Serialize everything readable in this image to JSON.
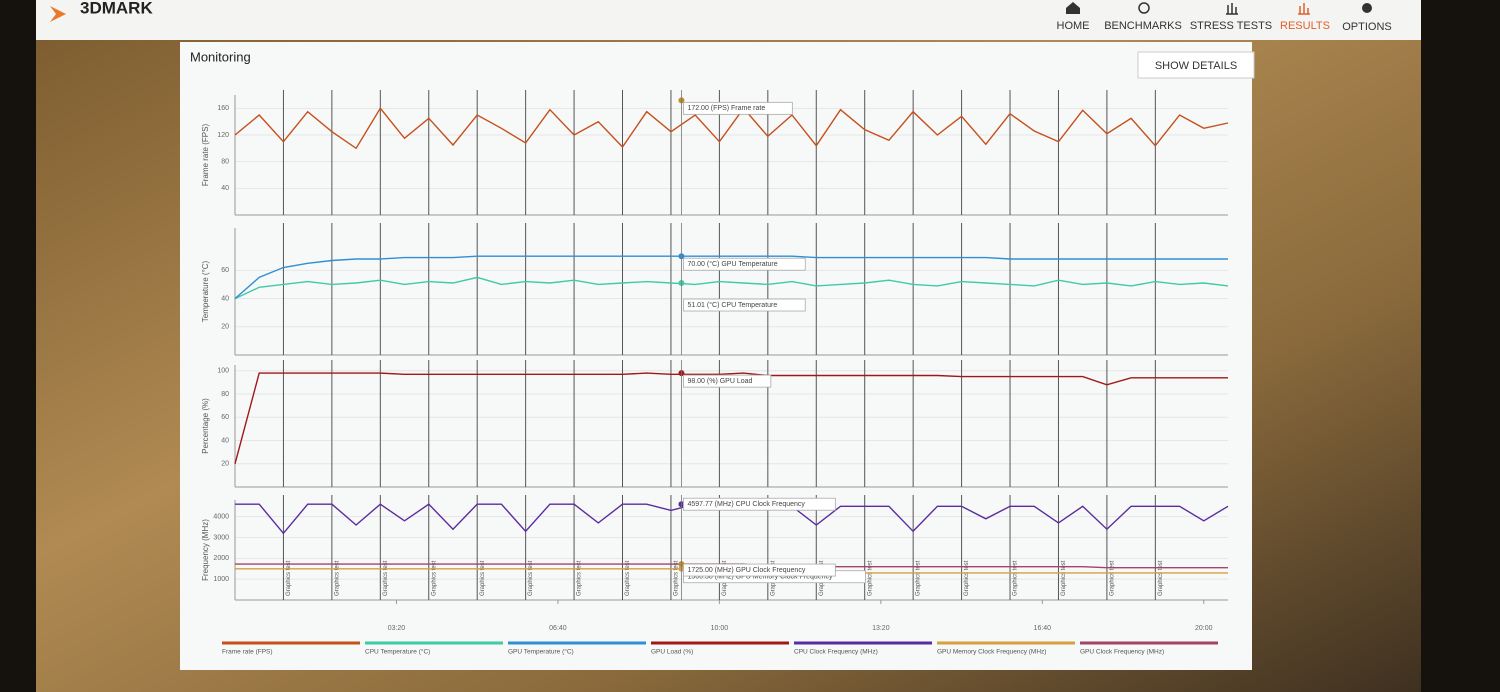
{
  "header": {
    "logo": "3DMARK",
    "nav": [
      "HOME",
      "BENCHMARKS",
      "STRESS TESTS",
      "RESULTS",
      "OPTIONS"
    ]
  },
  "panel": {
    "title": "Monitoring",
    "button": "SHOW DETAILS"
  },
  "markers": {
    "label": "Graphics test",
    "x": [
      60,
      120,
      180,
      240,
      300,
      360,
      420,
      480,
      540,
      600,
      660,
      720,
      780,
      840,
      900,
      960,
      1020,
      1080,
      1140
    ]
  },
  "chart_data": [
    {
      "type": "line",
      "ylabel": "Frame rate (FPS)",
      "xlim": [
        0,
        1230
      ],
      "ylim": [
        0,
        180
      ],
      "yticks": [
        40,
        80,
        120,
        160
      ],
      "x": [
        0,
        30,
        60,
        90,
        120,
        150,
        180,
        210,
        240,
        270,
        300,
        330,
        360,
        390,
        420,
        450,
        480,
        510,
        540,
        570,
        600,
        630,
        660,
        690,
        720,
        750,
        780,
        810,
        840,
        870,
        900,
        930,
        960,
        990,
        1020,
        1050,
        1080,
        1110,
        1140,
        1170,
        1200,
        1230
      ],
      "series": [
        {
          "name": "Frame rate (FPS)",
          "color": "#c4501c",
          "values": [
            120,
            150,
            110,
            155,
            125,
            100,
            160,
            115,
            145,
            105,
            150,
            130,
            108,
            158,
            120,
            140,
            102,
            155,
            125,
            150,
            110,
            160,
            118,
            150,
            104,
            158,
            128,
            112,
            155,
            120,
            148,
            106,
            152,
            126,
            110,
            157,
            122,
            145,
            104,
            150,
            130,
            138
          ]
        }
      ],
      "annotations": [
        {
          "x": 553,
          "y": 172,
          "color": "#c08a2a",
          "text": "172.00 (FPS) Frame rate"
        }
      ]
    },
    {
      "type": "line",
      "ylabel": "Temperature (°C)",
      "xlim": [
        0,
        1230
      ],
      "ylim": [
        0,
        90
      ],
      "yticks": [
        20,
        40,
        60
      ],
      "x": [
        0,
        30,
        60,
        90,
        120,
        150,
        180,
        210,
        240,
        270,
        300,
        330,
        360,
        390,
        420,
        450,
        480,
        510,
        540,
        570,
        600,
        630,
        660,
        690,
        720,
        750,
        780,
        810,
        840,
        870,
        900,
        930,
        960,
        990,
        1020,
        1050,
        1080,
        1110,
        1140,
        1170,
        1200,
        1230
      ],
      "series": [
        {
          "name": "CPU Temperature (°C)",
          "color": "#3ecba6",
          "values": [
            40,
            48,
            50,
            52,
            50,
            51,
            53,
            50,
            52,
            51,
            55,
            50,
            52,
            51,
            53,
            50,
            51,
            52,
            51,
            50,
            52,
            51,
            50,
            52,
            49,
            50,
            51,
            53,
            50,
            49,
            52,
            51,
            50,
            49,
            53,
            50,
            51,
            49,
            52,
            50,
            51,
            49
          ]
        },
        {
          "name": "GPU Temperature (°C)",
          "color": "#2f8fd6",
          "values": [
            40,
            55,
            62,
            65,
            67,
            68,
            68,
            69,
            69,
            69,
            70,
            70,
            70,
            70,
            70,
            70,
            70,
            70,
            70,
            70,
            70,
            70,
            70,
            70,
            69,
            69,
            69,
            69,
            69,
            69,
            69,
            69,
            68,
            68,
            68,
            68,
            68,
            68,
            68,
            68,
            68,
            68
          ]
        }
      ],
      "annotations": [
        {
          "x": 553,
          "y": 70,
          "color": "#2f8fd6",
          "text": "70.00 (°C) GPU Temperature"
        },
        {
          "x": 553,
          "y": 51.01,
          "color": "#3ecba6",
          "text": "51.01 (°C) CPU Temperature"
        }
      ]
    },
    {
      "type": "line",
      "ylabel": "Percentage (%)",
      "xlim": [
        0,
        1230
      ],
      "ylim": [
        0,
        105
      ],
      "yticks": [
        20,
        40,
        60,
        80,
        100
      ],
      "x": [
        0,
        30,
        60,
        90,
        120,
        150,
        180,
        210,
        240,
        270,
        300,
        330,
        360,
        390,
        420,
        450,
        480,
        510,
        540,
        570,
        600,
        630,
        660,
        690,
        720,
        750,
        780,
        810,
        840,
        870,
        900,
        930,
        960,
        990,
        1020,
        1050,
        1080,
        1110,
        1140,
        1170,
        1200,
        1230
      ],
      "series": [
        {
          "name": "GPU Load (%)",
          "color": "#a01818",
          "values": [
            20,
            98,
            98,
            98,
            98,
            98,
            98,
            97,
            97,
            97,
            97,
            97,
            97,
            97,
            97,
            97,
            97,
            98,
            97,
            97,
            97,
            98,
            96,
            96,
            96,
            96,
            96,
            96,
            96,
            96,
            95,
            95,
            95,
            95,
            95,
            95,
            88,
            94,
            94,
            94,
            94,
            94
          ]
        }
      ],
      "annotations": [
        {
          "x": 553,
          "y": 98,
          "color": "#a01818",
          "text": "98.00 (%) GPU Load"
        }
      ]
    },
    {
      "type": "line",
      "ylabel": "Frequency (MHz)",
      "xlim": [
        0,
        1230
      ],
      "ylim": [
        0,
        4800
      ],
      "yticks": [
        1000,
        2000,
        3000,
        4000
      ],
      "xticks": [
        {
          "value": 200,
          "label": "03:20"
        },
        {
          "value": 400,
          "label": "06:40"
        },
        {
          "value": 600,
          "label": "10:00"
        },
        {
          "value": 800,
          "label": "13:20"
        },
        {
          "value": 1000,
          "label": "16:40"
        },
        {
          "value": 1200,
          "label": "20:00"
        }
      ],
      "x": [
        0,
        30,
        60,
        90,
        120,
        150,
        180,
        210,
        240,
        270,
        300,
        330,
        360,
        390,
        420,
        450,
        480,
        510,
        540,
        570,
        600,
        630,
        660,
        690,
        720,
        750,
        780,
        810,
        840,
        870,
        900,
        930,
        960,
        990,
        1020,
        1050,
        1080,
        1110,
        1140,
        1170,
        1200,
        1230
      ],
      "series": [
        {
          "name": "CPU Clock Frequency (MHz)",
          "color": "#5b2ca0",
          "values": [
            4600,
            4600,
            3200,
            4600,
            4600,
            3600,
            4600,
            3800,
            4600,
            3400,
            4600,
            4600,
            3300,
            4600,
            4600,
            3700,
            4600,
            4600,
            4300,
            4600,
            4600,
            4600,
            4500,
            4500,
            3600,
            4500,
            4500,
            4500,
            3300,
            4500,
            4500,
            3900,
            4500,
            4500,
            3700,
            4500,
            3400,
            4500,
            4500,
            4500,
            3800,
            4500
          ]
        },
        {
          "name": "GPU Memory Clock Frequency (MHz)",
          "color": "#d4a040",
          "values": [
            1500,
            1500,
            1500,
            1500,
            1500,
            1500,
            1500,
            1500,
            1500,
            1500,
            1500,
            1500,
            1500,
            1500,
            1500,
            1500,
            1500,
            1500,
            1500,
            1500,
            1500,
            1500,
            1300,
            1300,
            1300,
            1300,
            1300,
            1300,
            1300,
            1300,
            1300,
            1300,
            1300,
            1300,
            1300,
            1300,
            1300,
            1300,
            1300,
            1300,
            1300,
            1300
          ]
        },
        {
          "name": "GPU Clock Frequency (MHz)",
          "color": "#a44468",
          "values": [
            1725,
            1725,
            1725,
            1725,
            1725,
            1725,
            1725,
            1725,
            1725,
            1725,
            1725,
            1725,
            1725,
            1725,
            1725,
            1725,
            1725,
            1725,
            1725,
            1725,
            1725,
            1725,
            1600,
            1600,
            1600,
            1600,
            1600,
            1600,
            1600,
            1600,
            1600,
            1600,
            1600,
            1600,
            1600,
            1600,
            1550,
            1550,
            1550,
            1550,
            1550,
            1550
          ]
        }
      ],
      "annotations": [
        {
          "x": 553,
          "y": 1500.38,
          "color": "#d4a040",
          "text": "1500.38 (MHz) GPU Memory Clock Frequency"
        },
        {
          "x": 553,
          "y": 1725,
          "color": "#c08a2a",
          "text": "1725.00 (MHz) GPU Clock Frequency"
        },
        {
          "x": 553,
          "y": 4597.77,
          "color": "#5b2ca0",
          "text": "4597.77 (MHz) CPU Clock Frequency"
        }
      ]
    }
  ]
}
